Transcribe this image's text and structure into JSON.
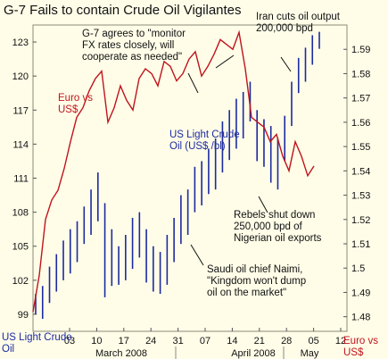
{
  "chart_data": {
    "type": "ohlc_line",
    "title": "G-7 Fails to contain Crude Oil Vigilantes",
    "left_axis": {
      "label": "US Light Crude Oil",
      "ticks": [
        "99",
        "102",
        "105",
        "108",
        "111",
        "114",
        "117",
        "120",
        "123"
      ],
      "range": [
        97.5,
        124.5
      ]
    },
    "right_axis": {
      "label": "Euro vs US$",
      "ticks": [
        "1.48",
        "1.49",
        "1.5",
        "1.51",
        "1.52",
        "1.53",
        "1.54",
        "1.55",
        "1.56",
        "1.57",
        "1.58",
        "1.59"
      ],
      "range": [
        1.474,
        1.6
      ]
    },
    "x_day_ticks": [
      "03",
      "10",
      "17",
      "24",
      "31",
      "07",
      "14",
      "21",
      "28",
      "05",
      "12"
    ],
    "x_month_labels": [
      "March 2008",
      "April 2008",
      "May"
    ],
    "series": [
      {
        "name": "US Light Crude Oil (US$ /bl)",
        "axis": "left",
        "color": "#1c2aa0",
        "bars": [
          {
            "high": 100.8,
            "low": 99.0
          },
          {
            "high": 101.5,
            "low": 98.6
          },
          {
            "high": 103.2,
            "low": 100.0
          },
          {
            "high": 104.3,
            "low": 101.0
          },
          {
            "high": 105.5,
            "low": 102.0
          },
          {
            "high": 106.5,
            "low": 102.6
          },
          {
            "high": 107.2,
            "low": 103.6
          },
          {
            "high": 108.5,
            "low": 105.2
          },
          {
            "high": 110.0,
            "low": 106.0
          },
          {
            "high": 111.5,
            "low": 107.2
          },
          {
            "high": 108.8,
            "low": 100.5
          },
          {
            "high": 106.5,
            "low": 101.5
          },
          {
            "high": 105.0,
            "low": 101.6
          },
          {
            "high": 106.0,
            "low": 102.0
          },
          {
            "high": 107.5,
            "low": 103.0
          },
          {
            "high": 108.0,
            "low": 104.0
          },
          {
            "high": 106.5,
            "low": 101.8
          },
          {
            "high": 105.0,
            "low": 101.0
          },
          {
            "high": 104.5,
            "low": 100.8
          },
          {
            "high": 106.0,
            "low": 101.6
          },
          {
            "high": 107.5,
            "low": 103.6
          },
          {
            "high": 109.5,
            "low": 105.2
          },
          {
            "high": 110.0,
            "low": 106.0
          },
          {
            "high": 112.0,
            "low": 108.0
          },
          {
            "high": 112.5,
            "low": 108.6
          },
          {
            "high": 113.6,
            "low": 109.6
          },
          {
            "high": 114.5,
            "low": 110.0
          },
          {
            "high": 116.0,
            "low": 111.5
          },
          {
            "high": 117.0,
            "low": 112.6
          },
          {
            "high": 118.0,
            "low": 113.6
          },
          {
            "high": 118.6,
            "low": 114.5
          },
          {
            "high": 119.5,
            "low": 116.0
          },
          {
            "high": 117.0,
            "low": 112.5
          },
          {
            "high": 116.2,
            "low": 112.0
          },
          {
            "high": 115.6,
            "low": 110.6
          },
          {
            "high": 114.5,
            "low": 110.0
          },
          {
            "high": 116.5,
            "low": 112.5
          },
          {
            "high": 119.5,
            "low": 115.6
          },
          {
            "high": 121.6,
            "low": 118.5
          },
          {
            "high": 122.5,
            "low": 119.5
          },
          {
            "high": 123.6,
            "low": 121.0
          },
          {
            "high": 123.9,
            "low": 122.4
          }
        ]
      },
      {
        "name": "Euro vs US$",
        "axis": "right",
        "color": "#c0141c",
        "values": [
          1.482,
          1.497,
          1.52,
          1.528,
          1.532,
          1.541,
          1.552,
          1.562,
          1.566,
          1.573,
          1.578,
          1.581,
          1.56,
          1.566,
          1.575,
          1.569,
          1.565,
          1.578,
          1.582,
          1.58,
          1.575,
          1.585,
          1.583,
          1.577,
          1.58,
          1.586,
          1.589,
          1.579,
          1.583,
          1.588,
          1.594,
          1.592,
          1.59,
          1.597,
          1.582,
          1.562,
          1.56,
          1.558,
          1.552,
          1.555,
          1.546,
          1.54,
          1.552,
          1.546,
          1.538,
          1.542
        ]
      }
    ],
    "annotations": [
      "G-7 agrees to \"monitor\nFX rates closely, will\ncooperate as needed\"",
      "Iran cuts oil output\n200,000 bpd",
      "Rebels shut down\n250,000 bpd of\nNigerian oil exports",
      "Saudi oil chief Naimi,\n\"Kingdom won't dump\noil on the market\""
    ],
    "grid": false
  }
}
